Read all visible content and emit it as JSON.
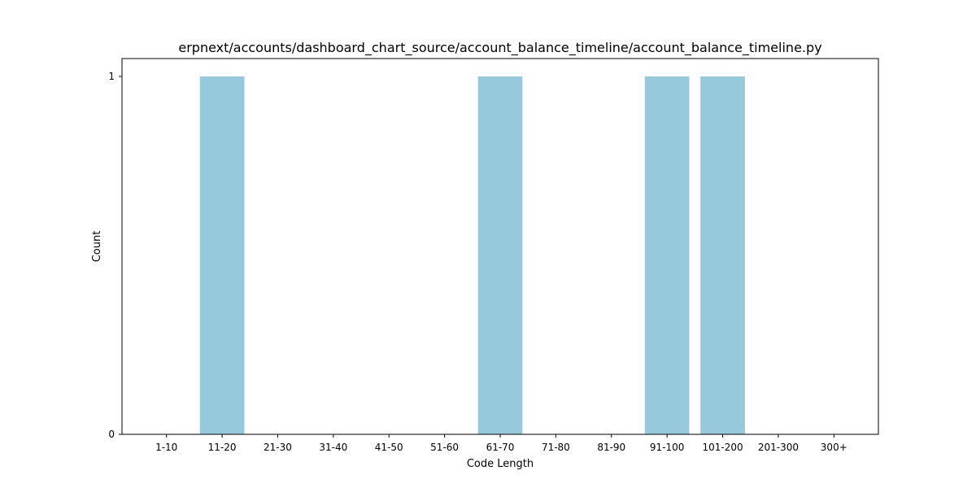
{
  "chart_data": {
    "type": "bar",
    "title": "erpnext/accounts/dashboard_chart_source/account_balance_timeline/account_balance_timeline.py",
    "xlabel": "Code Length",
    "ylabel": "Count",
    "categories": [
      "1-10",
      "11-20",
      "21-30",
      "31-40",
      "41-50",
      "51-60",
      "61-70",
      "71-80",
      "81-90",
      "91-100",
      "101-200",
      "201-300",
      "300+"
    ],
    "values": [
      0,
      1,
      0,
      0,
      0,
      0,
      1,
      0,
      0,
      1,
      1,
      0,
      0
    ],
    "yticks": [
      0,
      1
    ],
    "ylim": [
      0,
      1.05
    ],
    "grid": false,
    "bar_color": "#96c9dc"
  }
}
